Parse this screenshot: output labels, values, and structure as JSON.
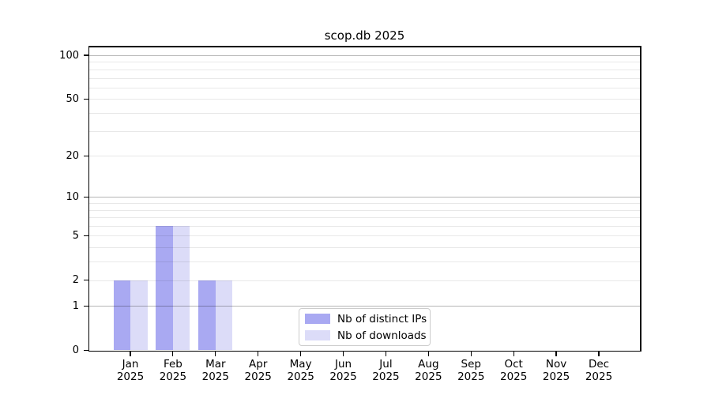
{
  "title": "scop.db 2025",
  "chart_data": {
    "type": "bar",
    "title": "scop.db 2025",
    "categories": [
      "Jan 2025",
      "Feb 2025",
      "Mar 2025",
      "Apr 2025",
      "May 2025",
      "Jun 2025",
      "Jul 2025",
      "Aug 2025",
      "Sep 2025",
      "Oct 2025",
      "Nov 2025",
      "Dec 2025"
    ],
    "months": [
      "Jan",
      "Feb",
      "Mar",
      "Apr",
      "May",
      "Jun",
      "Jul",
      "Aug",
      "Sep",
      "Oct",
      "Nov",
      "Dec"
    ],
    "year": "2025",
    "series": [
      {
        "name": "Nb of distinct IPs",
        "color": "#a9a9f2",
        "values": [
          2,
          6,
          2,
          0,
          0,
          0,
          0,
          0,
          0,
          0,
          0,
          0
        ]
      },
      {
        "name": "Nb of downloads",
        "color": "#dcdcf8",
        "values": [
          2,
          6,
          2,
          0,
          0,
          0,
          0,
          0,
          0,
          0,
          0,
          0
        ]
      }
    ],
    "xlabel": "",
    "ylabel": "",
    "y_scale": "log10(value+1)",
    "ylim": [
      0,
      115
    ],
    "y_major_ticks": [
      0,
      1,
      2,
      5,
      10,
      20,
      50,
      100
    ],
    "y_emphasized_gridlines": [
      1,
      10,
      100
    ],
    "y_minor_gridlines": [
      2,
      3,
      4,
      5,
      6,
      7,
      8,
      9,
      20,
      30,
      40,
      50,
      60,
      70,
      80,
      90
    ],
    "grid": true,
    "legend_position": "lower center",
    "colors": {
      "bar_distinct_ips": "#a9a9f2",
      "bar_downloads": "#dcdcf8",
      "grid_major": "#b5b5b5",
      "grid_minor": "#e8e8e8",
      "axis": "#000000",
      "legend_border": "#cccccc"
    }
  }
}
